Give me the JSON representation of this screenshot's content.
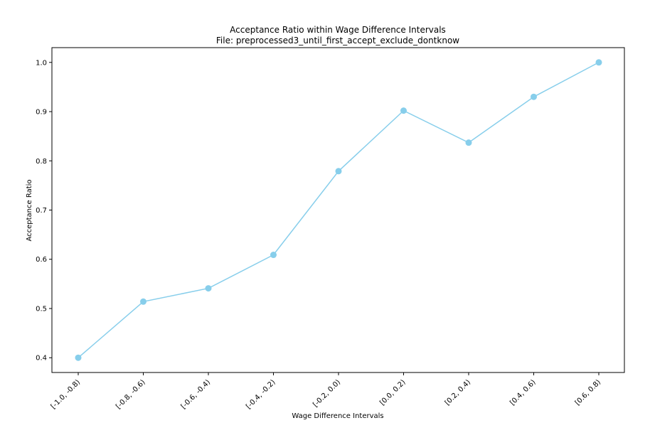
{
  "chart_data": {
    "type": "line",
    "title": "Acceptance Ratio within Wage Difference Intervals",
    "subtitle": "File: preprocessed3_until_first_accept_exclude_dontknow",
    "xlabel": "Wage Difference Intervals",
    "ylabel": "Acceptance Ratio",
    "categories": [
      "[-1.0, -0.8)",
      "[-0.8, -0.6)",
      "[-0.6, -0.4)",
      "[-0.4, -0.2)",
      "[-0.2, 0.0)",
      "[0.0, 0.2)",
      "[0.2, 0.4)",
      "[0.4, 0.6)",
      "[0.6, 0.8)"
    ],
    "values": [
      0.4,
      0.514,
      0.541,
      0.609,
      0.779,
      0.902,
      0.837,
      0.93,
      1.0
    ],
    "ylim": [
      0.37,
      1.03
    ],
    "yticks": [
      "0.4",
      "0.5",
      "0.6",
      "0.7",
      "0.8",
      "0.9",
      "1.0"
    ],
    "grid": false,
    "colors": {
      "line": "#87ceeb",
      "marker": "#87ceeb",
      "axis": "#000000"
    }
  }
}
